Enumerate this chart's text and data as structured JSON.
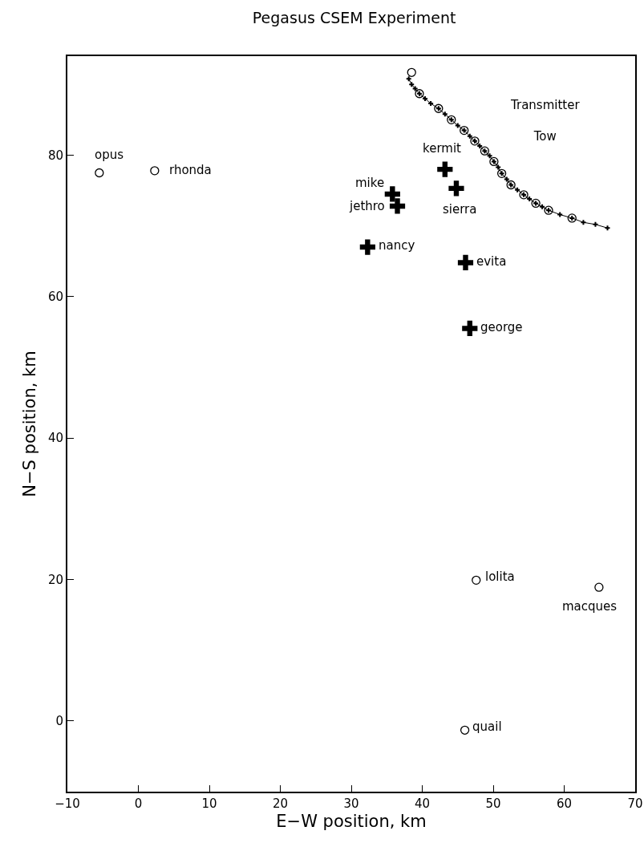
{
  "chart_data": {
    "type": "scatter",
    "title": "Pegasus CSEM Experiment",
    "xlabel": "E−W position, km",
    "ylabel": "N−S position, km",
    "xlim": [
      -10,
      70
    ],
    "ylim": [
      -10,
      94
    ],
    "xticks": [
      {
        "value": -10,
        "label": "−10"
      },
      0,
      10,
      20,
      30,
      40,
      50,
      60,
      70
    ],
    "yticks": [
      0,
      20,
      40,
      60,
      80
    ],
    "grid": false,
    "legend": false,
    "series": [
      {
        "name": "Transmitter Tow",
        "type": "line",
        "marker": "cross",
        "color": "#000000",
        "x": [
          38.1,
          38.5,
          39.0,
          39.6,
          40.4,
          41.2,
          42.3,
          43.2,
          44.1,
          45.0,
          45.9,
          46.7,
          47.4,
          48.1,
          48.8,
          49.5,
          50.1,
          50.7,
          51.2,
          51.9,
          52.5,
          53.4,
          54.3,
          55.1,
          56.0,
          56.9,
          57.8,
          59.4,
          61.1,
          62.7,
          64.4,
          66.1
        ],
        "values": [
          90.8,
          90.0,
          89.4,
          88.7,
          88.0,
          87.3,
          86.6,
          85.8,
          85.0,
          84.2,
          83.5,
          82.7,
          82.0,
          81.3,
          80.6,
          79.9,
          79.1,
          78.3,
          77.4,
          76.6,
          75.8,
          75.1,
          74.4,
          73.8,
          73.2,
          72.7,
          72.2,
          71.6,
          71.1,
          70.5,
          70.2,
          69.7
        ]
      },
      {
        "type": "scatter",
        "marker": "circle",
        "color": "#000000",
        "x": [
          38.5,
          39.6,
          42.3,
          44.1,
          45.9,
          47.4,
          48.8,
          50.1,
          51.2,
          52.5,
          54.3,
          56.0,
          57.8,
          61.1
        ],
        "values": [
          91.7,
          88.7,
          86.6,
          85.0,
          83.5,
          82.0,
          80.6,
          79.1,
          77.4,
          75.8,
          74.4,
          73.2,
          72.2,
          71.1
        ]
      },
      {
        "name": "opus",
        "marker": "circle",
        "color": "#000000",
        "x": [
          -5.5
        ],
        "values": [
          77.5
        ]
      },
      {
        "name": "rhonda",
        "marker": "circle",
        "color": "#000000",
        "x": [
          2.3
        ],
        "values": [
          77.8
        ]
      },
      {
        "name": "kermit",
        "marker": "cross",
        "color": "#000000",
        "x": [
          43.2
        ],
        "values": [
          78.0
        ]
      },
      {
        "name": "mike",
        "marker": "cross",
        "color": "#000000",
        "x": [
          35.8
        ],
        "values": [
          74.5
        ]
      },
      {
        "name": "jethro",
        "marker": "cross",
        "color": "#000000",
        "x": [
          36.5
        ],
        "values": [
          72.8
        ]
      },
      {
        "name": "sierra",
        "marker": "cross",
        "color": "#000000",
        "x": [
          44.8
        ],
        "values": [
          75.3
        ]
      },
      {
        "name": "nancy",
        "marker": "cross",
        "color": "#000000",
        "x": [
          32.3
        ],
        "values": [
          67.0
        ]
      },
      {
        "name": "evita",
        "marker": "cross",
        "color": "#000000",
        "x": [
          46.1
        ],
        "values": [
          64.8
        ]
      },
      {
        "name": "george",
        "marker": "cross",
        "color": "#000000",
        "x": [
          46.7
        ],
        "values": [
          55.5
        ]
      },
      {
        "name": "lolita",
        "marker": "circle",
        "color": "#000000",
        "x": [
          47.6
        ],
        "values": [
          19.9
        ]
      },
      {
        "name": "macques",
        "marker": "circle",
        "color": "#000000",
        "x": [
          64.9
        ],
        "values": [
          18.9
        ]
      },
      {
        "name": "quail",
        "marker": "circle",
        "color": "#000000",
        "x": [
          46.0
        ],
        "values": [
          -1.3
        ]
      }
    ]
  }
}
